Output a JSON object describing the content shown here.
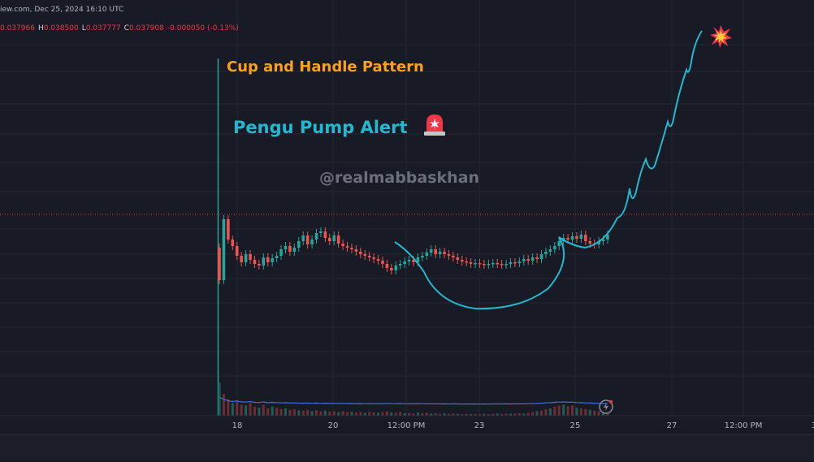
{
  "header": {
    "source_line": "iew.com, Dec 25, 2024 16:10 UTC",
    "ohlc": [
      {
        "key": "",
        "value": "0.037966"
      },
      {
        "key": "H",
        "value": "0.038500"
      },
      {
        "key": "L",
        "value": "0.037777"
      },
      {
        "key": "C",
        "value": "0.037908"
      },
      {
        "key": "",
        "value": "-0.000050 (-0.13%)"
      }
    ]
  },
  "annotations": {
    "pattern_title": "Cup and Handle Pattern",
    "alert_text": "Pengu Pump Alert",
    "watermark": "@realmabbaskhan"
  },
  "colors": {
    "background": "#181b25",
    "up": "#26a69a",
    "down": "#ef5350",
    "pattern_line": "#22b8d0",
    "title": "#ff9f1a",
    "volume_ma": "#3f6fd8"
  },
  "icons": {
    "alert": "siren-icon",
    "burst": "explosion-icon",
    "replay": "lightning-icon"
  },
  "chart_data": {
    "type": "candlestick",
    "x_axis_ticks": [
      "18",
      "20",
      "12:00 PM",
      "23",
      "25",
      "27",
      "12:00 PM",
      "3"
    ],
    "x_range": [
      0,
      28
    ],
    "y_range": [
      0.8,
      1.9
    ],
    "candles_close": [
      0.8,
      1.55,
      1.3,
      1.22,
      1.1,
      1.02,
      1.12,
      1.05,
      1.0,
      0.98,
      1.08,
      1.02,
      1.07,
      1.1,
      1.18,
      1.22,
      1.15,
      1.2,
      1.28,
      1.35,
      1.24,
      1.3,
      1.38,
      1.4,
      1.32,
      1.28,
      1.35,
      1.25,
      1.22,
      1.2,
      1.18,
      1.15,
      1.12,
      1.1,
      1.08,
      1.06,
      1.04,
      1.0,
      0.95,
      0.92,
      0.98,
      1.0,
      1.03,
      1.05,
      1.02,
      1.08,
      1.1,
      1.14,
      1.18,
      1.12,
      1.15,
      1.12,
      1.1,
      1.08,
      1.05,
      1.03,
      1.02,
      1.0,
      1.01,
      1.0,
      0.99,
      1.0,
      1.01,
      1.0,
      0.99,
      1.0,
      1.02,
      1.01,
      1.03,
      1.06,
      1.04,
      1.08,
      1.06,
      1.12,
      1.15,
      1.18,
      1.22,
      1.28,
      1.32,
      1.3,
      1.34,
      1.31,
      1.36,
      1.28,
      1.25,
      1.24,
      1.28,
      1.3,
      1.36
    ],
    "volume_relative": [
      0.9,
      0.6,
      0.45,
      0.35,
      0.42,
      0.3,
      0.28,
      0.35,
      0.25,
      0.22,
      0.3,
      0.2,
      0.25,
      0.22,
      0.18,
      0.2,
      0.16,
      0.18,
      0.15,
      0.14,
      0.16,
      0.13,
      0.15,
      0.12,
      0.14,
      0.11,
      0.12,
      0.1,
      0.13,
      0.1,
      0.11,
      0.09,
      0.1,
      0.08,
      0.1,
      0.09,
      0.08,
      0.1,
      0.12,
      0.09,
      0.08,
      0.1,
      0.07,
      0.08,
      0.06,
      0.09,
      0.07,
      0.08,
      0.06,
      0.07,
      0.05,
      0.06,
      0.05,
      0.06,
      0.05,
      0.04,
      0.05,
      0.04,
      0.05,
      0.04,
      0.05,
      0.04,
      0.05,
      0.06,
      0.05,
      0.06,
      0.05,
      0.06,
      0.07,
      0.06,
      0.08,
      0.1,
      0.12,
      0.14,
      0.18,
      0.2,
      0.25,
      0.28,
      0.3,
      0.26,
      0.28,
      0.22,
      0.2,
      0.18,
      0.16,
      0.14,
      0.12,
      0.1,
      0.08
    ]
  }
}
